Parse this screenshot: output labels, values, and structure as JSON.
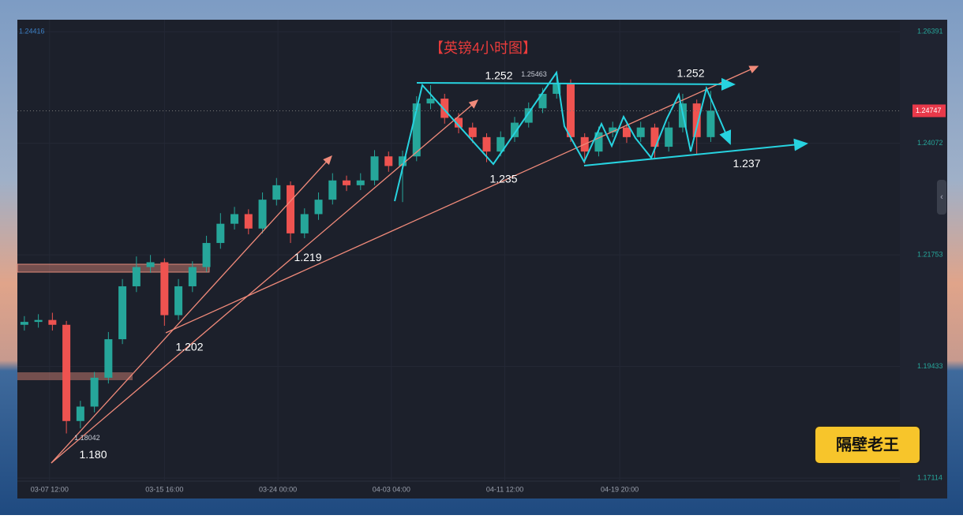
{
  "chart_data": {
    "type": "candlestick",
    "title": "【英镑4小时图】",
    "legend_value": 1.24416,
    "last_price": 1.24747,
    "watermark": "隔壁老王",
    "up_color": "#26a69a",
    "down_color": "#ef5350",
    "ylim": [
      1.1669,
      1.2664
    ],
    "yticks": [
      1.26391,
      1.24072,
      1.21753,
      1.19433,
      1.17114
    ],
    "xlim": [
      0,
      63
    ],
    "xticks": [
      {
        "value": 2.3,
        "label": "03-07 12:00"
      },
      {
        "value": 10.5,
        "label": "03-15 16:00"
      },
      {
        "value": 18.6,
        "label": "03-24 00:00"
      },
      {
        "value": 26.7,
        "label": "04-03 04:00"
      },
      {
        "value": 34.8,
        "label": "04-11 12:00"
      },
      {
        "value": 43.0,
        "label": "04-19 20:00"
      }
    ],
    "open": [
      1.203,
      1.2036,
      1.204,
      1.203,
      1.183,
      1.186,
      1.192,
      1.2,
      1.211,
      1.215,
      1.216,
      1.205,
      1.211,
      1.215,
      1.22,
      1.224,
      1.226,
      1.223,
      1.229,
      1.232,
      1.222,
      1.226,
      1.229,
      1.233,
      1.232,
      1.233,
      1.238,
      1.236,
      1.238,
      1.249,
      1.25,
      1.246,
      1.244,
      1.242,
      1.239,
      1.242,
      1.245,
      1.248,
      1.251,
      1.253,
      1.242,
      1.239,
      1.243,
      1.244,
      1.242,
      1.244,
      1.24,
      1.244,
      1.249,
      1.242
    ],
    "high": [
      1.2048,
      1.2052,
      1.2055,
      1.2038,
      1.1872,
      1.1932,
      1.2015,
      1.2125,
      1.2172,
      1.2175,
      1.2168,
      1.2125,
      1.2162,
      1.2215,
      1.2262,
      1.2275,
      1.227,
      1.2305,
      1.2335,
      1.2328,
      1.2272,
      1.2305,
      1.2345,
      1.234,
      1.2345,
      1.2393,
      1.239,
      1.2392,
      1.2505,
      1.2528,
      1.251,
      1.247,
      1.245,
      1.2428,
      1.2432,
      1.2462,
      1.2492,
      1.2522,
      1.25463,
      1.254,
      1.2428,
      1.2442,
      1.2452,
      1.2448,
      1.2452,
      1.2448,
      1.2452,
      1.251,
      1.2498,
      1.2516
    ],
    "low": [
      1.2018,
      1.2024,
      1.2018,
      1.18042,
      1.1815,
      1.1848,
      1.1908,
      1.199,
      1.2098,
      1.2138,
      1.2028,
      1.204,
      1.2098,
      1.214,
      1.2188,
      1.2228,
      1.2218,
      1.222,
      1.2278,
      1.22,
      1.221,
      1.2248,
      1.228,
      1.2308,
      1.231,
      1.232,
      1.2348,
      1.2285,
      1.237,
      1.2478,
      1.2448,
      1.2428,
      1.2408,
      1.2368,
      1.238,
      1.241,
      1.244,
      1.247,
      1.25,
      1.241,
      1.2365,
      1.238,
      1.242,
      1.2408,
      1.241,
      1.2375,
      1.239,
      1.243,
      1.2385,
      1.241
    ],
    "close": [
      1.2036,
      1.204,
      1.203,
      1.183,
      1.186,
      1.192,
      1.2,
      1.211,
      1.215,
      1.216,
      1.205,
      1.211,
      1.215,
      1.22,
      1.224,
      1.226,
      1.223,
      1.229,
      1.232,
      1.222,
      1.226,
      1.229,
      1.233,
      1.232,
      1.233,
      1.238,
      1.236,
      1.238,
      1.249,
      1.25,
      1.246,
      1.244,
      1.242,
      1.239,
      1.242,
      1.245,
      1.248,
      1.251,
      1.253,
      1.242,
      1.239,
      1.243,
      1.244,
      1.242,
      1.244,
      1.24,
      1.244,
      1.249,
      1.242,
      1.2475
    ],
    "annotations": [
      {
        "value": 1.18,
        "label": "1.180"
      },
      {
        "value": 1.202,
        "label": "1.202"
      },
      {
        "value": 1.219,
        "label": "1.219"
      },
      {
        "value": 1.235,
        "label": "1.235"
      },
      {
        "value": 1.252,
        "label": "1.252"
      },
      {
        "value": 1.252,
        "label": "1.252"
      },
      {
        "value": 1.237,
        "label": "1.237"
      }
    ]
  }
}
